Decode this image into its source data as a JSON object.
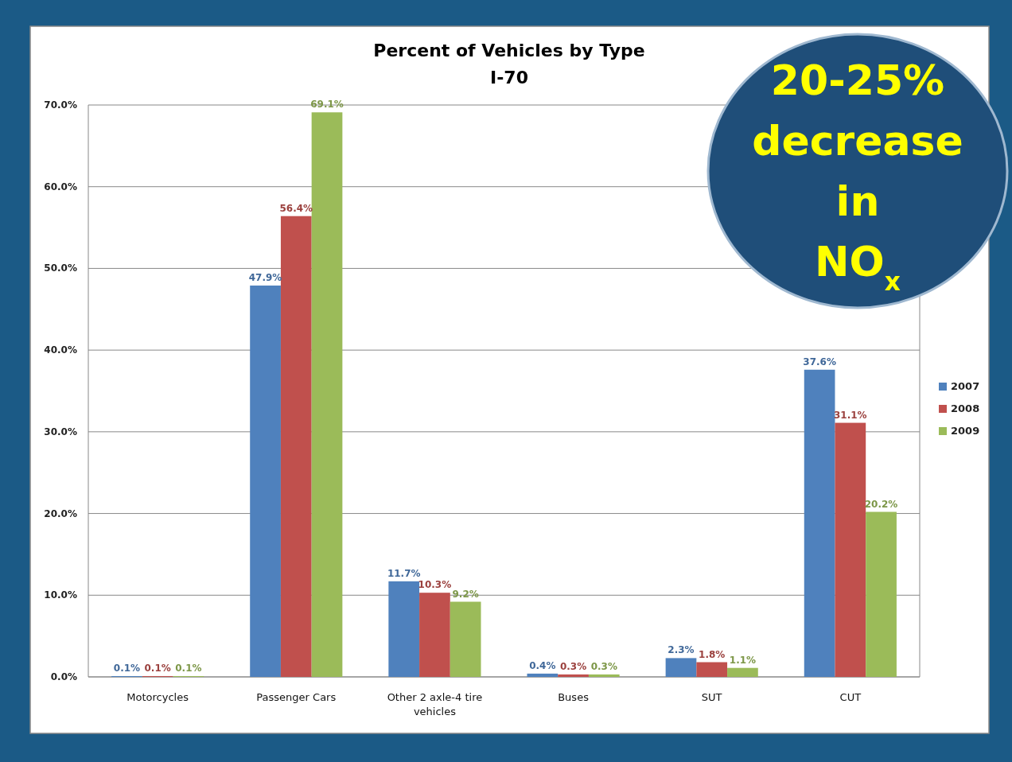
{
  "chart_data": {
    "type": "bar",
    "title": "Percent of Vehicles by Type",
    "subtitle": "I-70",
    "categories": [
      "Motorcycles",
      "Passenger Cars",
      "Other 2 axle-4 tire vehicles",
      "Buses",
      "SUT",
      "CUT"
    ],
    "series": [
      {
        "name": "2007",
        "color": "#4f81bd",
        "values": [
          0.1,
          47.9,
          11.7,
          0.4,
          2.3,
          37.6
        ],
        "value_labels": [
          "0.1%",
          "47.9%",
          "11.7%",
          "0.4%",
          "2.3%",
          "37.6%"
        ]
      },
      {
        "name": "2008",
        "color": "#c0504d",
        "values": [
          0.1,
          56.4,
          10.3,
          0.3,
          1.8,
          31.1
        ],
        "value_labels": [
          "0.1%",
          "56.4%",
          "10.3%",
          "0.3%",
          "1.8%",
          "31.1%"
        ]
      },
      {
        "name": "2009",
        "color": "#9bbb59",
        "values": [
          0.1,
          69.1,
          9.2,
          0.3,
          1.1,
          20.2
        ],
        "value_labels": [
          "0.1%",
          "69.1%",
          "9.2%",
          "0.3%",
          "1.1%",
          "20.2%"
        ]
      }
    ],
    "ylim": [
      0,
      70
    ],
    "yticks": [
      {
        "value": 0,
        "label": "0.0%"
      },
      {
        "value": 10,
        "label": "10.0%"
      },
      {
        "value": 20,
        "label": "20.0%"
      },
      {
        "value": 30,
        "label": "30.0%"
      },
      {
        "value": 40,
        "label": "40.0%"
      },
      {
        "value": 50,
        "label": "50.0%"
      },
      {
        "value": 60,
        "label": "60.0%"
      },
      {
        "value": 70,
        "label": "70.0%"
      }
    ],
    "grid": "y",
    "legend": "right",
    "annotations": [
      "20-25% decrease in NO$_{x}$"
    ]
  }
}
